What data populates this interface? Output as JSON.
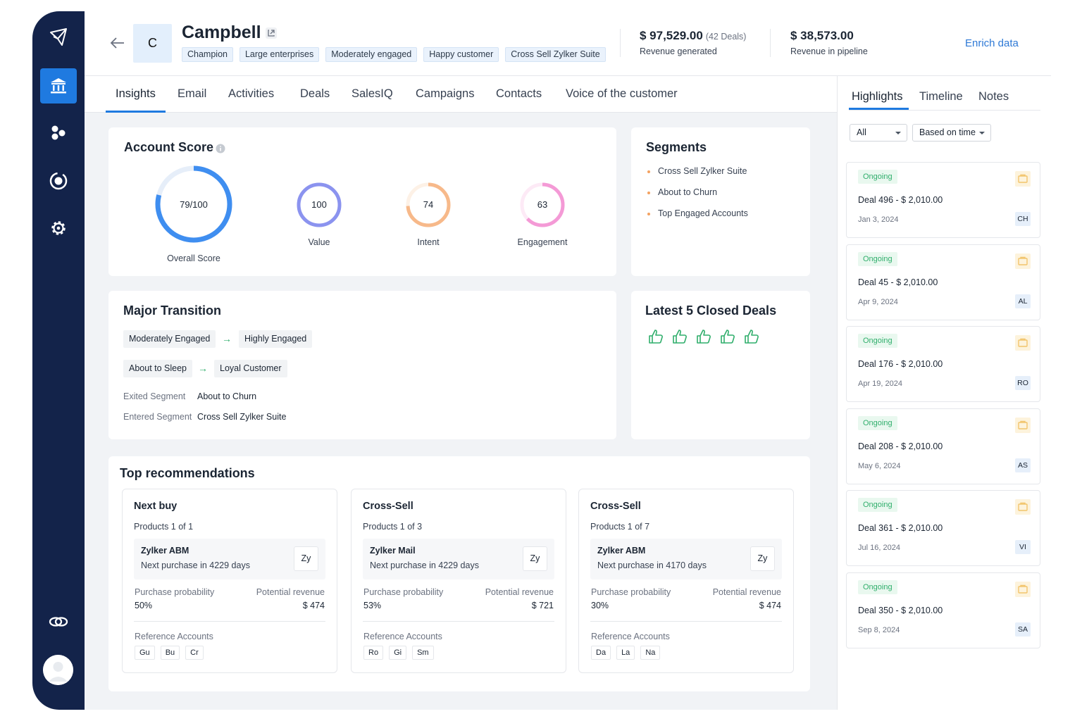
{
  "header": {
    "logo_letter": "C",
    "account_name": "Campbell",
    "tags": [
      "Champion",
      "Large enterprises",
      "Moderately engaged",
      "Happy customer",
      "Cross Sell Zylker Suite"
    ],
    "revenue_generated": {
      "value": "$ 97,529.00",
      "deals": "(42 Deals)",
      "label": "Revenue generated"
    },
    "revenue_pipeline": {
      "value": "$ 38,573.00",
      "label": "Revenue in pipeline"
    },
    "enrich_label": "Enrich data"
  },
  "main_tabs": [
    "Insights",
    "Email",
    "Activities",
    "Deals",
    "SalesIQ",
    "Campaigns",
    "Contacts",
    "Voice of the customer"
  ],
  "account_score": {
    "title": "Account Score",
    "overall": {
      "value": "79/100",
      "label": "Overall Score",
      "fraction": 0.79,
      "color": "#3f8ef0"
    },
    "value": {
      "value": "100",
      "label": "Value",
      "fraction": 1.0,
      "color": "#8b93ef"
    },
    "intent": {
      "value": "74",
      "label": "Intent",
      "fraction": 0.74,
      "color": "#f7b98a"
    },
    "engagement": {
      "value": "63",
      "label": "Engagement",
      "fraction": 0.63,
      "color": "#f49ad6"
    }
  },
  "segments": {
    "title": "Segments",
    "items": [
      "Cross Sell Zylker Suite",
      "About to Churn",
      "Top Engaged Accounts"
    ]
  },
  "major_transition": {
    "title": "Major Transition",
    "transitions": [
      {
        "from": "Moderately Engaged",
        "to": "Highly Engaged"
      },
      {
        "from": "About to Sleep",
        "to": "Loyal Customer"
      }
    ],
    "exited_label": "Exited Segment",
    "exited_value": "About to Churn",
    "entered_label": "Entered Segment",
    "entered_value": "Cross Sell Zylker Suite"
  },
  "latest_deals": {
    "title": "Latest 5 Closed Deals",
    "thumbs_up_count": 5
  },
  "recommendations": {
    "title": "Top recommendations",
    "prob_label": "Purchase probability",
    "rev_label": "Potential revenue",
    "ref_label": "Reference Accounts",
    "cards": [
      {
        "title": "Next buy",
        "products": "Products 1 of 1",
        "product_name": "Zylker ABM",
        "next_purchase": "Next purchase in 4229 days",
        "badge": "Zy",
        "probability": "50%",
        "revenue": "$ 474",
        "refs": [
          "Gu",
          "Bu",
          "Cr"
        ]
      },
      {
        "title": "Cross-Sell",
        "products": "Products 1 of 3",
        "product_name": "Zylker Mail",
        "next_purchase": "Next purchase in 4229 days",
        "badge": "Zy",
        "probability": "53%",
        "revenue": "$ 721",
        "refs": [
          "Ro",
          "Gi",
          "Sm"
        ]
      },
      {
        "title": "Cross-Sell",
        "products": "Products 1 of 7",
        "product_name": "Zylker ABM",
        "next_purchase": "Next purchase in 4170 days",
        "badge": "Zy",
        "probability": "30%",
        "revenue": "$ 474",
        "refs": [
          "Da",
          "La",
          "Na"
        ]
      }
    ]
  },
  "right_panel": {
    "tabs": [
      "Highlights",
      "Timeline",
      "Notes"
    ],
    "filter_all": "All",
    "filter_time": "Based on time",
    "deals": [
      {
        "status": "Ongoing",
        "name": "Deal 496 - $ 2,010.00",
        "date": "Jan 3, 2024",
        "owner": "CH"
      },
      {
        "status": "Ongoing",
        "name": "Deal 45 - $ 2,010.00",
        "date": "Apr 9, 2024",
        "owner": "AL"
      },
      {
        "status": "Ongoing",
        "name": "Deal 176 - $ 2,010.00",
        "date": "Apr 19, 2024",
        "owner": "RO"
      },
      {
        "status": "Ongoing",
        "name": "Deal 208 - $ 2,010.00",
        "date": "May 6, 2024",
        "owner": "AS"
      },
      {
        "status": "Ongoing",
        "name": "Deal 361 - $ 2,010.00",
        "date": "Jul 16, 2024",
        "owner": "VI"
      },
      {
        "status": "Ongoing",
        "name": "Deal 350 - $ 2,010.00",
        "date": "Sep 8, 2024",
        "owner": "SA"
      }
    ]
  },
  "sidebar": {
    "icons": [
      "paper-plane-icon",
      "bank-icon",
      "segments-icon",
      "target-icon",
      "gear-icon",
      "link-icon"
    ]
  },
  "colors": {
    "sidebar": "#13234a",
    "accent": "#1f7ae0",
    "success": "#2fae6b"
  }
}
